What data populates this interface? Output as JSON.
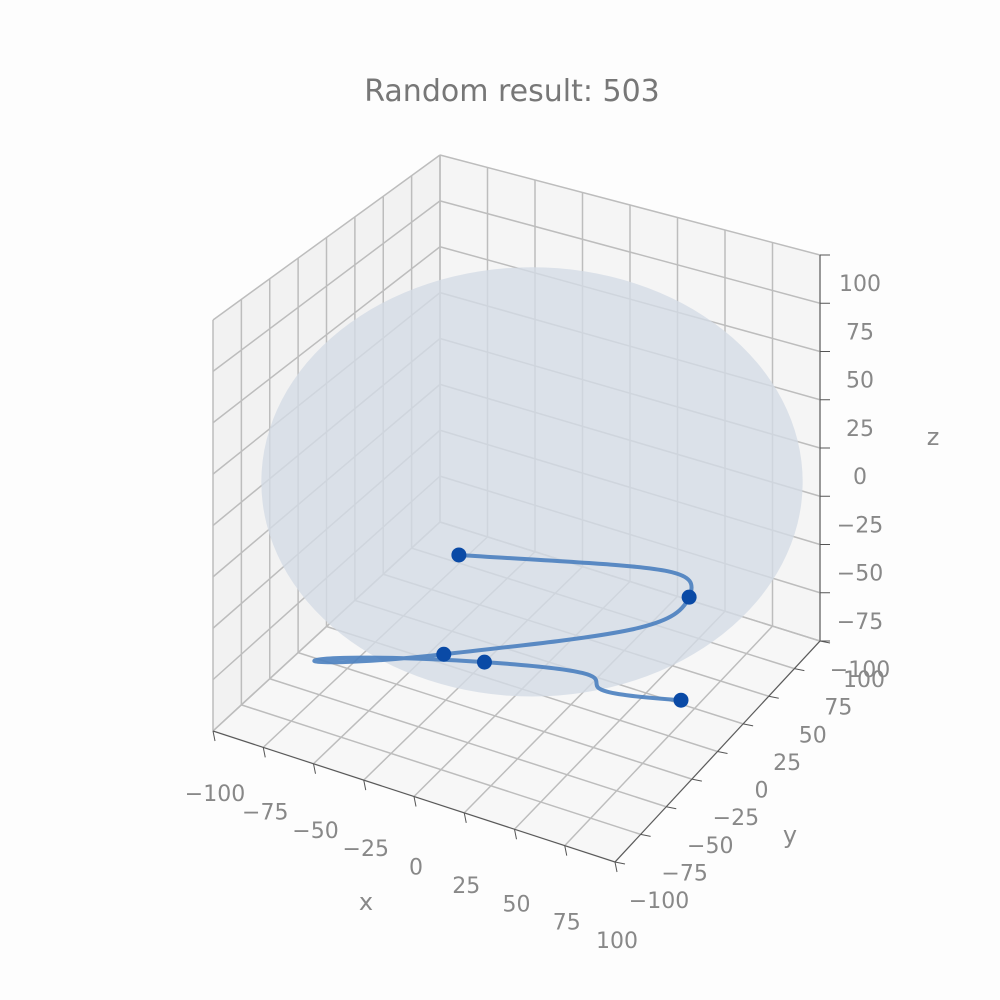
{
  "chart_data": {
    "type": "3d-scatter-line",
    "title": "Random result: 503",
    "xlabel": "x",
    "ylabel": "y",
    "zlabel": "z",
    "xlim": [
      -100,
      100
    ],
    "ylim": [
      -100,
      100
    ],
    "zlim": [
      -100,
      100
    ],
    "ticks": {
      "x": [
        "−100",
        "−75",
        "−50",
        "−25",
        "0",
        "25",
        "50",
        "75",
        "100"
      ],
      "y": [
        "−100",
        "−75",
        "−50",
        "−25",
        "0",
        "25",
        "50",
        "75",
        "100"
      ],
      "z": [
        "−100",
        "−75",
        "−50",
        "−25",
        "0",
        "25",
        "50",
        "75",
        "100"
      ]
    },
    "grid": true,
    "sphere": {
      "radius": 100,
      "color": "#d3dbe6"
    },
    "points": [
      {
        "x": -55,
        "y": 40,
        "z": -70
      },
      {
        "x": 45,
        "y": 75,
        "z": -80
      },
      {
        "x": -40,
        "y": 0,
        "z": -95
      },
      {
        "x": -22,
        "y": 5,
        "z": -96
      },
      {
        "x": 68,
        "y": 25,
        "z": -98
      }
    ],
    "colors": {
      "line": "#4a7fbf",
      "point": "#0a4aa6",
      "grid": "#bdbdbd",
      "text": "#888888"
    }
  }
}
